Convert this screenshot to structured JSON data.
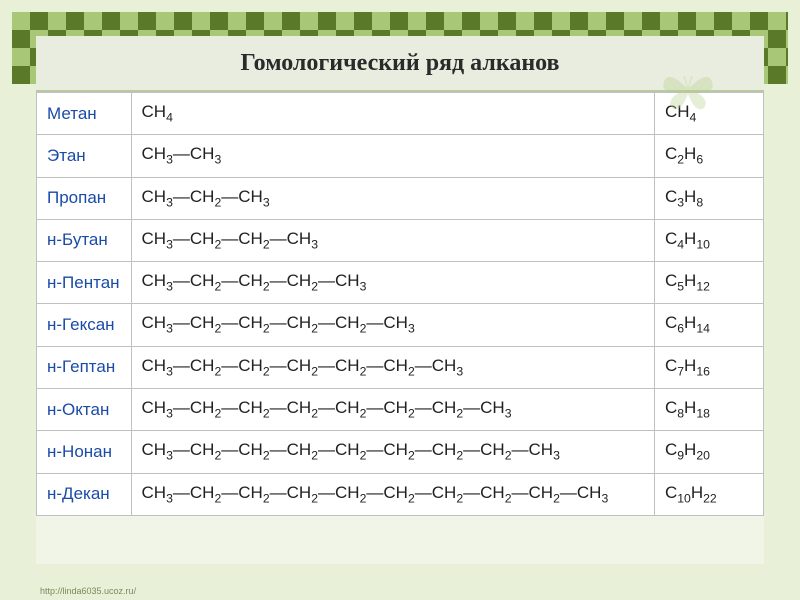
{
  "title": "Гомологический ряд алканов",
  "footer": "http://linda6035.ucoz.ru/",
  "colors": {
    "border_dark": "#5a7a2a",
    "border_light": "#a8c878",
    "inner_bg": "#f0f5e8",
    "titlebar_bg": "#e8eddf",
    "title_color": "#2a2a2a",
    "name_color": "#1a4ba8",
    "cell_border": "#c0c0c0",
    "table_bg": "#ffffff"
  },
  "typography": {
    "title_fontsize_pt": 18,
    "cell_fontsize_pt": 13,
    "title_family": "Georgia/serif",
    "cell_family": "Arial/sans-serif"
  },
  "table": {
    "columns": [
      "name",
      "structural_formula",
      "molecular_formula"
    ],
    "col_widths_pct": [
      13,
      72,
      15
    ],
    "rows": [
      {
        "name": "Метан",
        "structure_html": "CH<sub>4</sub>",
        "formula_html": "CH<sub>4</sub>"
      },
      {
        "name": "Этан",
        "structure_html": "CH<sub>3</sub>—CH<sub>3</sub>",
        "formula_html": "C<sub>2</sub>H<sub>6</sub>"
      },
      {
        "name": "Пропан",
        "structure_html": "CH<sub>3</sub>—CH<sub>2</sub>—CH<sub>3</sub>",
        "formula_html": "C<sub>3</sub>H<sub>8</sub>"
      },
      {
        "name": "н-Бутан",
        "structure_html": "CH<sub>3</sub>—CH<sub>2</sub>—CH<sub>2</sub>—CH<sub>3</sub>",
        "formula_html": "C<sub>4</sub>H<sub>10</sub>"
      },
      {
        "name": "н-Пентан",
        "structure_html": "CH<sub>3</sub>—CH<sub>2</sub>—CH<sub>2</sub>—CH<sub>2</sub>—CH<sub>3</sub>",
        "formula_html": "C<sub>5</sub>H<sub>12</sub>"
      },
      {
        "name": "н-Гексан",
        "structure_html": "CH<sub>3</sub>—CH<sub>2</sub>—CH<sub>2</sub>—CH<sub>2</sub>—CH<sub>2</sub>—CH<sub>3</sub>",
        "formula_html": "C<sub>6</sub>H<sub>14</sub>"
      },
      {
        "name": "н-Гептан",
        "structure_html": "CH<sub>3</sub>—CH<sub>2</sub>—CH<sub>2</sub>—CH<sub>2</sub>—CH<sub>2</sub>—CH<sub>2</sub>—CH<sub>3</sub>",
        "formula_html": "C<sub>7</sub>H<sub>16</sub>"
      },
      {
        "name": "н-Октан",
        "structure_html": "CH<sub>3</sub>—CH<sub>2</sub>—CH<sub>2</sub>—CH<sub>2</sub>—CH<sub>2</sub>—CH<sub>2</sub>—CH<sub>2</sub>—CH<sub>3</sub>",
        "formula_html": "C<sub>8</sub>H<sub>18</sub>"
      },
      {
        "name": "н-Нонан",
        "structure_html": "CH<sub>3</sub>—CH<sub>2</sub>—CH<sub>2</sub>—CH<sub>2</sub>—CH<sub>2</sub>—CH<sub>2</sub>—CH<sub>2</sub>—CH<sub>2</sub>—CH<sub>3</sub>",
        "formula_html": "C<sub>9</sub>H<sub>20</sub>"
      },
      {
        "name": "н-Декан",
        "structure_html": "CH<sub>3</sub>—CH<sub>2</sub>—CH<sub>2</sub>—CH<sub>2</sub>—CH<sub>2</sub>—CH<sub>2</sub>—CH<sub>2</sub>—CH<sub>2</sub>—CH<sub>2</sub>—CH<sub>3</sub>",
        "formula_html": "C<sub>10</sub>H<sub>22</sub>"
      }
    ]
  }
}
